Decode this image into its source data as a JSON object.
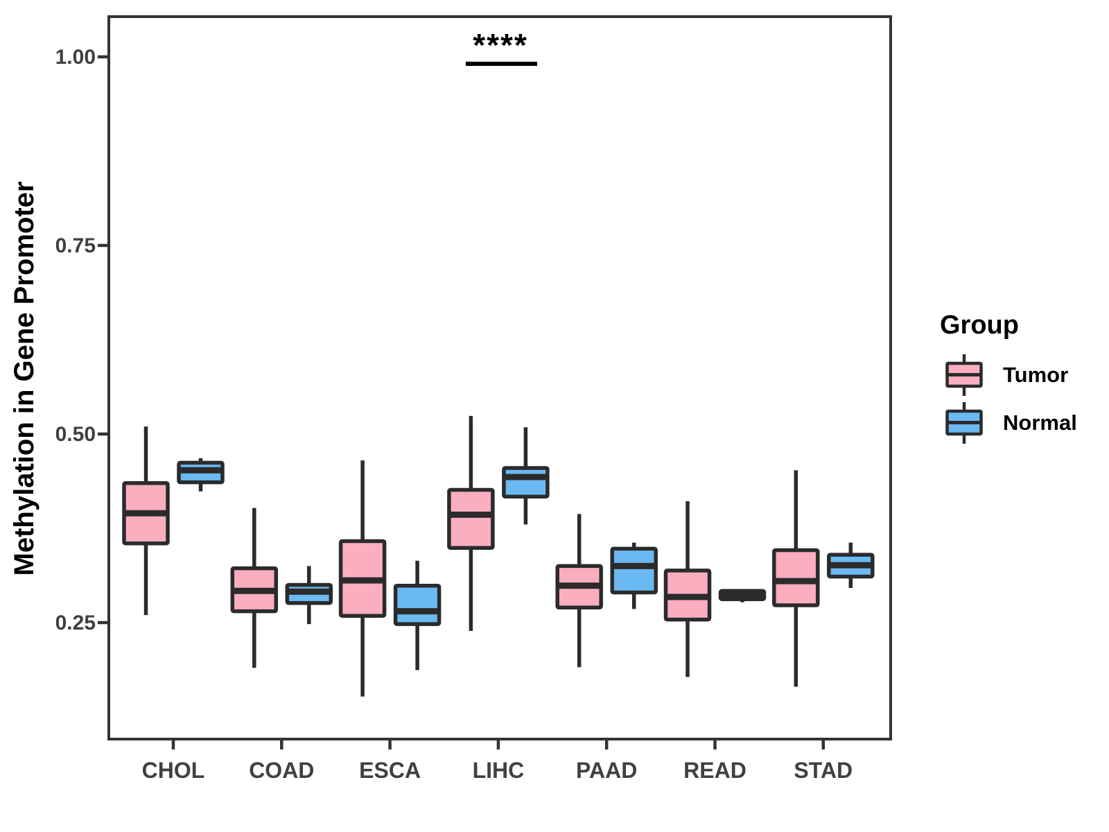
{
  "y_axis": {
    "label": "Methylation in Gene Promoter",
    "ticks": [
      "1.00",
      "0.75",
      "0.50",
      "0.25"
    ],
    "tick_values": [
      1.0,
      0.75,
      0.5,
      0.25
    ]
  },
  "legend": {
    "title": "Group",
    "items": [
      {
        "label": "Tumor",
        "color": "#FAAEC0"
      },
      {
        "label": "Normal",
        "color": "#6BB9F2"
      }
    ]
  },
  "annotation": {
    "text": "****",
    "category": "LIHC"
  },
  "colors": {
    "tumor_fill": "#FAAEC0",
    "normal_fill": "#6BB9F2",
    "box_stroke": "#2b2b2b",
    "panel_stroke": "#333333",
    "axis_text": "#404040"
  },
  "chart_data": {
    "type": "boxplot",
    "title": "",
    "xlabel": "",
    "ylabel": "Methylation in Gene Promoter",
    "ylim": [
      0.09,
      1.06
    ],
    "grid": false,
    "legend_position": "right",
    "categories": [
      "CHOL",
      "COAD",
      "ESCA",
      "LIHC",
      "PAAD",
      "READ",
      "STAD"
    ],
    "series": [
      {
        "name": "Tumor",
        "color": "#FAAEC0",
        "boxes": [
          {
            "min": 0.26,
            "q1": 0.355,
            "median": 0.395,
            "q3": 0.435,
            "max": 0.51
          },
          {
            "min": 0.19,
            "q1": 0.265,
            "median": 0.292,
            "q3": 0.322,
            "max": 0.402
          },
          {
            "min": 0.152,
            "q1": 0.259,
            "median": 0.306,
            "q3": 0.358,
            "max": 0.465
          },
          {
            "min": 0.239,
            "q1": 0.349,
            "median": 0.393,
            "q3": 0.426,
            "max": 0.524
          },
          {
            "min": 0.191,
            "q1": 0.27,
            "median": 0.299,
            "q3": 0.325,
            "max": 0.394
          },
          {
            "min": 0.178,
            "q1": 0.254,
            "median": 0.284,
            "q3": 0.319,
            "max": 0.411
          },
          {
            "min": 0.165,
            "q1": 0.273,
            "median": 0.305,
            "q3": 0.346,
            "max": 0.452
          }
        ]
      },
      {
        "name": "Normal",
        "color": "#6BB9F2",
        "boxes": [
          {
            "min": 0.424,
            "q1": 0.436,
            "median": 0.452,
            "q3": 0.462,
            "max": 0.468
          },
          {
            "min": 0.248,
            "q1": 0.276,
            "median": 0.291,
            "q3": 0.3,
            "max": 0.325
          },
          {
            "min": 0.187,
            "q1": 0.248,
            "median": 0.265,
            "q3": 0.299,
            "max": 0.332
          },
          {
            "min": 0.38,
            "q1": 0.417,
            "median": 0.443,
            "q3": 0.455,
            "max": 0.509
          },
          {
            "min": 0.268,
            "q1": 0.29,
            "median": 0.325,
            "q3": 0.348,
            "max": 0.356
          },
          {
            "min": 0.277,
            "q1": 0.281,
            "median": 0.287,
            "q3": 0.292,
            "max": 0.293
          },
          {
            "min": 0.296,
            "q1": 0.311,
            "median": 0.326,
            "q3": 0.34,
            "max": 0.356
          }
        ]
      }
    ],
    "significance": {
      "text": "****",
      "category": "LIHC"
    }
  }
}
